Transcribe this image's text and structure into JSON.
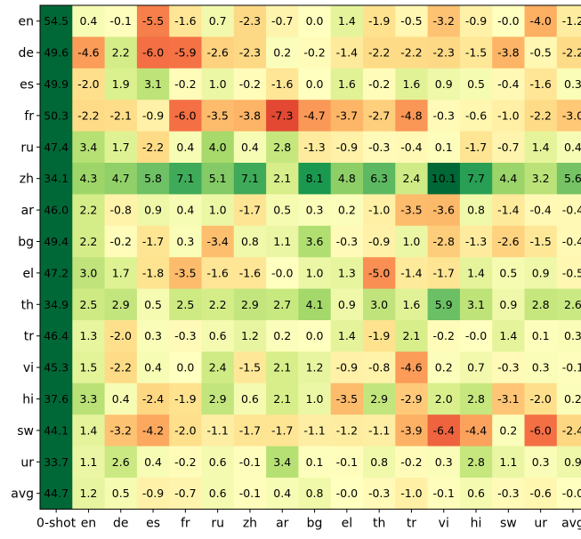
{
  "chart_data": {
    "type": "heatmap",
    "title": "",
    "xlabel": "",
    "ylabel": "",
    "grid": false,
    "legend": "none",
    "colormap": "RdYlGn",
    "color_range": [
      -10.1,
      10.1
    ],
    "first_column_color": "#006837",
    "x_categories": [
      "0-shot",
      "en",
      "de",
      "es",
      "fr",
      "ru",
      "zh",
      "ar",
      "bg",
      "el",
      "th",
      "tr",
      "vi",
      "hi",
      "sw",
      "ur",
      "avg"
    ],
    "y_categories": [
      "en",
      "de",
      "es",
      "fr",
      "ru",
      "zh",
      "ar",
      "bg",
      "el",
      "th",
      "tr",
      "vi",
      "hi",
      "sw",
      "ur",
      "avg"
    ],
    "values": [
      [
        "54.5",
        "0.4",
        "-0.1",
        "-5.5",
        "-1.6",
        "0.7",
        "-2.3",
        "-0.7",
        "0.0",
        "1.4",
        "-1.9",
        "-0.5",
        "-3.2",
        "-0.9",
        "-0.0",
        "-4.0",
        "-1.2"
      ],
      [
        "49.6",
        "-4.6",
        "2.2",
        "-6.0",
        "-5.9",
        "-2.6",
        "-2.3",
        "0.2",
        "-0.2",
        "-1.4",
        "-2.2",
        "-2.2",
        "-2.3",
        "-1.5",
        "-3.8",
        "-0.5",
        "-2.2"
      ],
      [
        "49.9",
        "-2.0",
        "1.9",
        "3.1",
        "-0.2",
        "1.0",
        "-0.2",
        "-1.6",
        "0.0",
        "1.6",
        "-0.2",
        "1.6",
        "0.9",
        "0.5",
        "-0.4",
        "-1.6",
        "0.3"
      ],
      [
        "50.3",
        "-2.2",
        "-2.1",
        "-0.9",
        "-6.0",
        "-3.5",
        "-3.8",
        "-7.3",
        "-4.7",
        "-3.7",
        "-2.7",
        "-4.8",
        "-0.3",
        "-0.6",
        "-1.0",
        "-2.2",
        "-3.0"
      ],
      [
        "47.4",
        "3.4",
        "1.7",
        "-2.2",
        "0.4",
        "4.0",
        "0.4",
        "2.8",
        "-1.3",
        "-0.9",
        "-0.3",
        "-0.4",
        "0.1",
        "-1.7",
        "-0.7",
        "1.4",
        "0.4"
      ],
      [
        "34.1",
        "4.3",
        "4.7",
        "5.8",
        "7.1",
        "5.1",
        "7.1",
        "2.1",
        "8.1",
        "4.8",
        "6.3",
        "2.4",
        "10.1",
        "7.7",
        "4.4",
        "3.2",
        "5.6"
      ],
      [
        "46.0",
        "2.2",
        "-0.8",
        "0.9",
        "0.4",
        "1.0",
        "-1.7",
        "0.5",
        "0.3",
        "0.2",
        "-1.0",
        "-3.5",
        "-3.6",
        "0.8",
        "-1.4",
        "-0.4",
        "-0.4"
      ],
      [
        "49.4",
        "2.2",
        "-0.2",
        "-1.7",
        "0.3",
        "-3.4",
        "0.8",
        "1.1",
        "3.6",
        "-0.3",
        "-0.9",
        "1.0",
        "-2.8",
        "-1.3",
        "-2.6",
        "-1.5",
        "-0.4"
      ],
      [
        "47.2",
        "3.0",
        "1.7",
        "-1.8",
        "-3.5",
        "-1.6",
        "-1.6",
        "-0.0",
        "1.0",
        "1.3",
        "-5.0",
        "-1.4",
        "-1.7",
        "1.4",
        "0.5",
        "0.9",
        "-0.5"
      ],
      [
        "34.9",
        "2.5",
        "2.9",
        "0.5",
        "2.5",
        "2.2",
        "2.9",
        "2.7",
        "4.1",
        "0.9",
        "3.0",
        "1.6",
        "5.9",
        "3.1",
        "0.9",
        "2.8",
        "2.6"
      ],
      [
        "46.4",
        "1.3",
        "-2.0",
        "0.3",
        "-0.3",
        "0.6",
        "1.2",
        "0.2",
        "0.0",
        "1.4",
        "-1.9",
        "2.1",
        "-0.2",
        "-0.0",
        "1.4",
        "0.1",
        "0.3"
      ],
      [
        "45.3",
        "1.5",
        "-2.2",
        "0.4",
        "0.0",
        "2.4",
        "-1.5",
        "2.1",
        "1.2",
        "-0.9",
        "-0.8",
        "-4.6",
        "0.2",
        "0.7",
        "-0.3",
        "0.3",
        "-0.1"
      ],
      [
        "37.6",
        "3.3",
        "0.4",
        "-2.4",
        "-1.9",
        "2.9",
        "0.6",
        "2.1",
        "1.0",
        "-3.5",
        "2.9",
        "-2.9",
        "2.0",
        "2.8",
        "-3.1",
        "-2.0",
        "0.2"
      ],
      [
        "44.1",
        "1.4",
        "-3.2",
        "-4.2",
        "-2.0",
        "-1.1",
        "-1.7",
        "-1.7",
        "-1.1",
        "-1.2",
        "-1.1",
        "-3.9",
        "-6.4",
        "-4.4",
        "0.2",
        "-6.0",
        "-2.4"
      ],
      [
        "33.7",
        "1.1",
        "2.6",
        "0.4",
        "-0.2",
        "0.6",
        "-0.1",
        "3.4",
        "0.1",
        "-0.1",
        "0.8",
        "-0.2",
        "0.3",
        "2.8",
        "1.1",
        "0.3",
        "0.9"
      ],
      [
        "44.7",
        "1.2",
        "0.5",
        "-0.9",
        "-0.7",
        "0.6",
        "-0.1",
        "0.4",
        "0.8",
        "-0.0",
        "-0.3",
        "-1.0",
        "-0.1",
        "0.6",
        "-0.3",
        "-0.6",
        "-0.0"
      ]
    ]
  }
}
